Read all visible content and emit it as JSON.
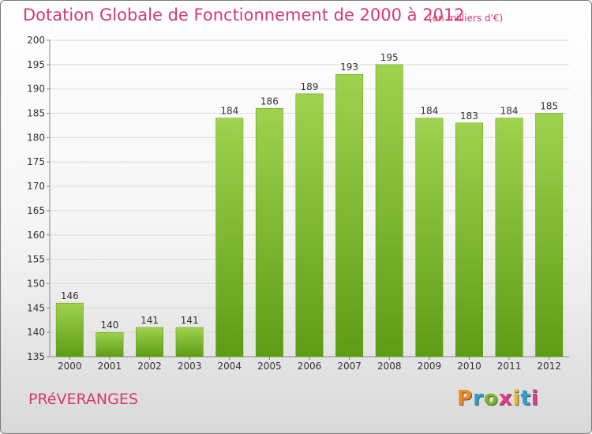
{
  "header": {
    "title": "Dotation Globale de Fonctionnement de 2000 à 2012",
    "unit": "(en milliers d'€)"
  },
  "footer": {
    "commune": "PRéVERANGES",
    "logo": "Proxiti",
    "logo_colors": [
      "#f28a1b",
      "#2a9fd6",
      "#7ab51d",
      "#e23a8c",
      "#f2b51b",
      "#2a9fd6",
      "#e23a8c"
    ]
  },
  "chart_data": {
    "type": "bar",
    "categories": [
      "2000",
      "2001",
      "2002",
      "2003",
      "2004",
      "2005",
      "2006",
      "2007",
      "2008",
      "2009",
      "2010",
      "2011",
      "2012"
    ],
    "values": [
      146,
      140,
      141,
      141,
      184,
      186,
      189,
      193,
      195,
      184,
      183,
      184,
      185
    ],
    "ylim": [
      135,
      200
    ],
    "yticks": [
      135,
      140,
      145,
      150,
      155,
      160,
      165,
      170,
      175,
      180,
      185,
      190,
      195,
      200
    ],
    "grid": true,
    "bar_color_light": "#9fd24e",
    "bar_color_dark": "#5e9c14"
  }
}
